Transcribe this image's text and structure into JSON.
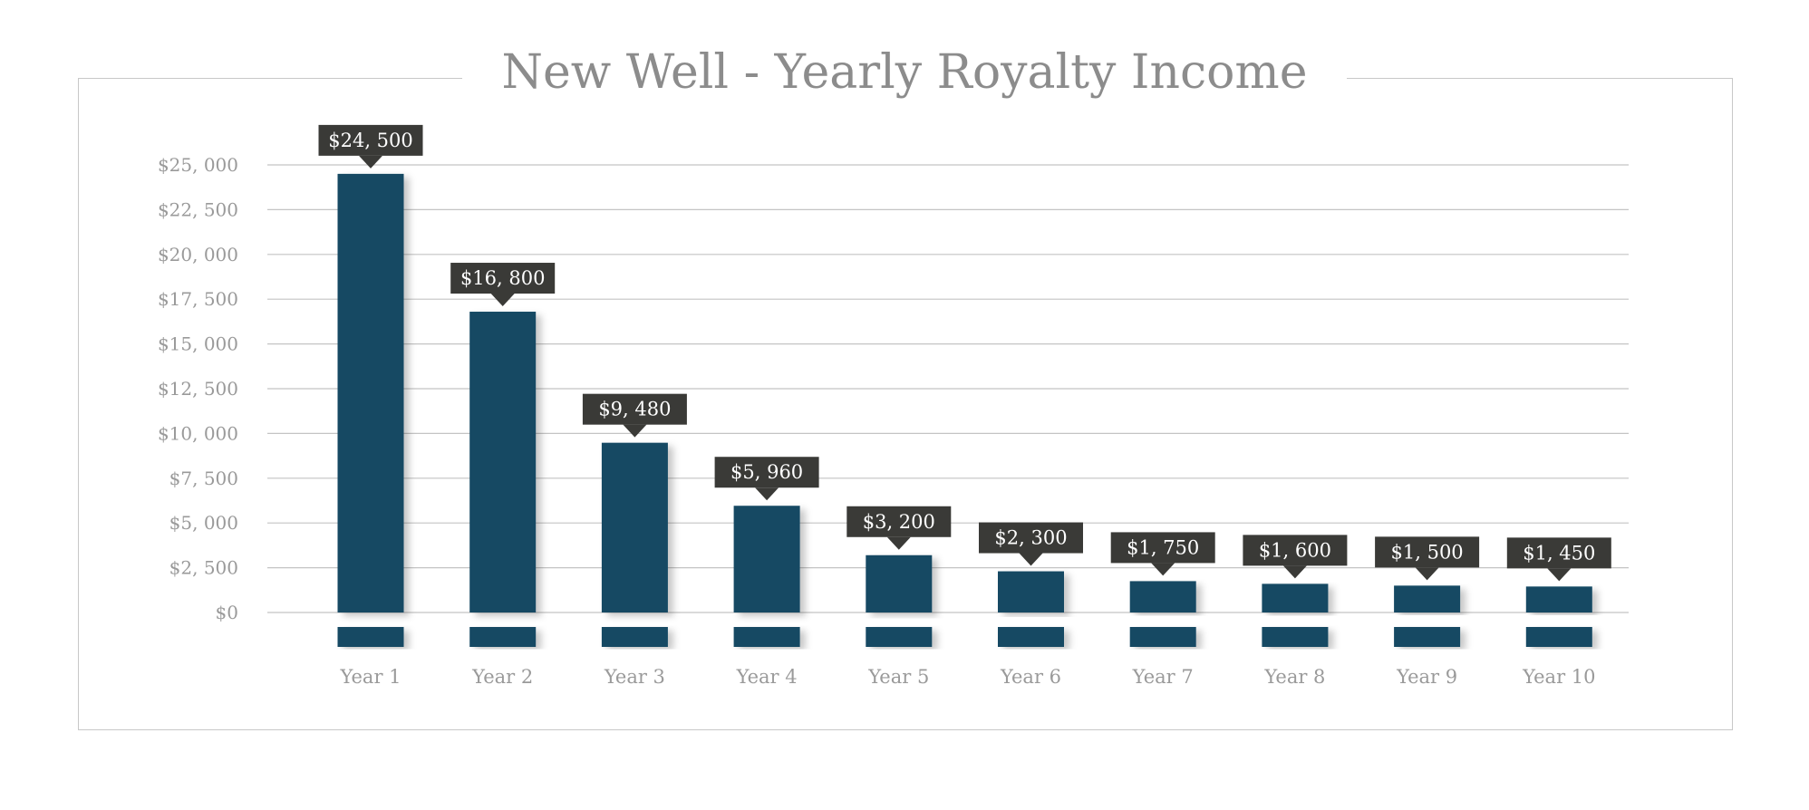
{
  "chart_data": {
    "type": "bar",
    "title": "New Well - Yearly Royalty Income",
    "xlabel": "",
    "ylabel": "",
    "categories": [
      "Year 1",
      "Year 2",
      "Year 3",
      "Year 4",
      "Year 5",
      "Year 6",
      "Year 7",
      "Year 8",
      "Year 9",
      "Year 10"
    ],
    "values": [
      24500,
      16800,
      9480,
      5960,
      3200,
      2300,
      1750,
      1600,
      1500,
      1450
    ],
    "value_labels": [
      "$24, 500",
      "$16, 800",
      "$9, 480",
      "$5, 960",
      "$3, 200",
      "$2, 300",
      "$1, 750",
      "$1, 600",
      "$1, 500",
      "$1, 450"
    ],
    "ylim": [
      0,
      25000
    ],
    "yticks": [
      0,
      2500,
      5000,
      7500,
      10000,
      12500,
      15000,
      17500,
      20000,
      22500,
      25000
    ],
    "ytick_labels": [
      "$0",
      "$2, 500",
      "$5, 000",
      "$7, 500",
      "$10, 000",
      "$12, 500",
      "$15, 000",
      "$17, 500",
      "$20, 000",
      "$22, 500",
      "$25, 000"
    ],
    "grid": true,
    "legend": "none",
    "colors": {
      "bar": "#134864",
      "label_box": "#3a3a37",
      "label_text": "#ffffff",
      "grid": "#c4c4c4",
      "axis_text": "#9a9a9a",
      "title": "#8c8c8c",
      "frame": "#c8c8c8"
    }
  }
}
